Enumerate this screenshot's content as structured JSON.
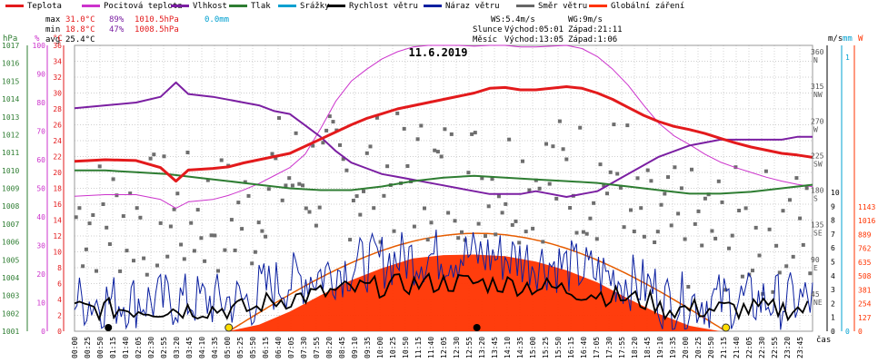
{
  "legend": [
    {
      "label": "Teplota",
      "color": "#e31a1c"
    },
    {
      "label": "Pocitová teplota",
      "color": "#cc33cc"
    },
    {
      "label": "Vlhkost",
      "color": "#7b1fa2"
    },
    {
      "label": "Tlak",
      "color": "#2e7d32"
    },
    {
      "label": "Srážky",
      "color": "#00a0d0"
    },
    {
      "label": "Rychlost větru",
      "color": "#000000"
    },
    {
      "label": "Náraz větru",
      "color": "#0a1fa0"
    },
    {
      "label": "Směr větru",
      "color": "#666666"
    },
    {
      "label": "Globální záření",
      "color": "#ff3300"
    }
  ],
  "stats": {
    "max_label": "max",
    "max_temp": "31.0°C",
    "max_hum": "89%",
    "max_press": "1010.5hPa",
    "max_rain": "0.0mm",
    "min_label": "min",
    "min_temp": "18.8°C",
    "min_hum": "47%",
    "min_press": "1008.5hPa",
    "avg_label": "avg",
    "avg_temp": "25.4°C"
  },
  "sun": {
    "ws": "WS:5.4m/s",
    "wg": "WG:9m/s",
    "sun_label": "Slunce",
    "sun_rise": "Východ:05:01",
    "sun_set": "Západ:21:11",
    "moon_label": "Měsíc",
    "moon_rise": "Východ:13:05",
    "moon_set": "Západ:1:06"
  },
  "chart_data": {
    "type": "line",
    "title": "11.6.2019",
    "x_unit": "čas",
    "x_ticks": [
      "00:00",
      "00:25",
      "00:50",
      "01:15",
      "01:40",
      "02:05",
      "02:30",
      "02:55",
      "03:20",
      "03:45",
      "04:10",
      "04:35",
      "05:00",
      "05:25",
      "05:50",
      "06:15",
      "06:40",
      "07:05",
      "07:30",
      "07:55",
      "08:20",
      "08:45",
      "09:10",
      "09:35",
      "10:00",
      "10:25",
      "10:50",
      "11:15",
      "11:40",
      "12:05",
      "12:30",
      "12:55",
      "13:20",
      "13:45",
      "14:10",
      "14:35",
      "15:00",
      "15:25",
      "15:50",
      "16:15",
      "16:40",
      "17:05",
      "17:30",
      "17:55",
      "18:20",
      "18:45",
      "19:10",
      "19:35",
      "20:00",
      "20:25",
      "20:50",
      "21:15",
      "21:40",
      "22:05",
      "22:30",
      "22:55",
      "23:20",
      "23:45"
    ],
    "axes": {
      "pressure": {
        "unit": "hPa",
        "range": [
          1001,
          1017
        ],
        "ticks": [
          "1001",
          "1002",
          "1003",
          "1004",
          "1005",
          "1006",
          "1007",
          "1008",
          "1009",
          "1010",
          "1011",
          "1012",
          "1013",
          "1014",
          "1015",
          "1016",
          "1017"
        ]
      },
      "humidity": {
        "unit": "%",
        "range": [
          0,
          100
        ],
        "ticks": [
          "0",
          "10",
          "20",
          "30",
          "40",
          "50",
          "60",
          "70",
          "80",
          "90",
          "100"
        ]
      },
      "temperature": {
        "unit": "°C",
        "range": [
          0,
          36
        ],
        "ticks": [
          "0",
          "2",
          "4",
          "6",
          "8",
          "10",
          "12",
          "14",
          "16",
          "18",
          "20",
          "22",
          "24",
          "26",
          "28",
          "30",
          "32",
          "34",
          "36"
        ]
      },
      "wind_dir": {
        "unit": "",
        "ticks": [
          {
            "v": "360",
            "d": "N"
          },
          {
            "v": "315",
            "d": "NW"
          },
          {
            "v": "270",
            "d": "W"
          },
          {
            "v": "225",
            "d": "SW"
          },
          {
            "v": "180",
            "d": "S"
          },
          {
            "v": "135",
            "d": "SE"
          },
          {
            "v": "90",
            "d": "E"
          },
          {
            "v": "45",
            "d": "NE"
          }
        ]
      },
      "wind_speed": {
        "unit": "m/s",
        "range": [
          0,
          10
        ],
        "ticks": [
          "0",
          "1",
          "2",
          "3",
          "4",
          "5",
          "6",
          "7",
          "8",
          "9",
          "10"
        ]
      },
      "rain": {
        "unit": "mm",
        "range": [
          0,
          1
        ],
        "ticks": [
          "0",
          "1"
        ]
      },
      "radiation": {
        "unit": "W",
        "range": [
          0,
          1143
        ],
        "ticks": [
          "0",
          "127",
          "254",
          "381",
          "508",
          "635",
          "762",
          "889",
          "1016",
          "1143"
        ]
      }
    },
    "sunrise_marker": "05:01",
    "sunset_marker": "21:11",
    "moonrise_marker": "13:05",
    "moonset_marker": "01:06",
    "series": [
      {
        "name": "Teplota",
        "unit": "°C",
        "points": [
          [
            0,
            21.4
          ],
          [
            1,
            21.6
          ],
          [
            2,
            21.5
          ],
          [
            2.8,
            20.6
          ],
          [
            3.3,
            18.9
          ],
          [
            3.7,
            20.3
          ],
          [
            4.5,
            20.5
          ],
          [
            5,
            20.7
          ],
          [
            5.5,
            21.2
          ],
          [
            6,
            21.6
          ],
          [
            6.5,
            22.0
          ],
          [
            7,
            22.4
          ],
          [
            7.5,
            23.3
          ],
          [
            8,
            24.2
          ],
          [
            8.5,
            25.1
          ],
          [
            9,
            26.0
          ],
          [
            9.5,
            26.8
          ],
          [
            10,
            27.4
          ],
          [
            10.5,
            28.0
          ],
          [
            11,
            28.4
          ],
          [
            11.5,
            28.8
          ],
          [
            12,
            29.2
          ],
          [
            12.5,
            29.6
          ],
          [
            13,
            30.0
          ],
          [
            13.5,
            30.6
          ],
          [
            14,
            30.7
          ],
          [
            14.5,
            30.4
          ],
          [
            15,
            30.4
          ],
          [
            15.5,
            30.6
          ],
          [
            16,
            30.8
          ],
          [
            16.5,
            30.6
          ],
          [
            17,
            30.0
          ],
          [
            17.5,
            29.2
          ],
          [
            18,
            28.2
          ],
          [
            18.5,
            27.2
          ],
          [
            19,
            26.4
          ],
          [
            19.5,
            25.8
          ],
          [
            20,
            25.4
          ],
          [
            20.5,
            24.9
          ],
          [
            21,
            24.3
          ],
          [
            21.5,
            23.7
          ],
          [
            22,
            23.2
          ],
          [
            22.5,
            22.8
          ],
          [
            23,
            22.4
          ],
          [
            23.5,
            22.2
          ],
          [
            24,
            21.9
          ]
        ]
      },
      {
        "name": "Pocitová teplota",
        "unit": "°C",
        "points": [
          [
            0,
            17.0
          ],
          [
            1,
            17.2
          ],
          [
            2,
            17.2
          ],
          [
            2.8,
            16.6
          ],
          [
            3.3,
            15.5
          ],
          [
            3.7,
            16.3
          ],
          [
            4.5,
            16.6
          ],
          [
            5,
            17.1
          ],
          [
            5.5,
            17.8
          ],
          [
            6,
            18.6
          ],
          [
            6.5,
            19.6
          ],
          [
            7,
            20.6
          ],
          [
            7.5,
            22.3
          ],
          [
            8,
            25.5
          ],
          [
            8.5,
            29.0
          ],
          [
            9,
            31.5
          ],
          [
            9.5,
            33.0
          ],
          [
            10,
            34.3
          ],
          [
            10.5,
            35.2
          ],
          [
            11,
            35.8
          ],
          [
            11.5,
            36.0
          ],
          [
            12,
            36.0
          ],
          [
            12.5,
            36.0
          ],
          [
            13,
            35.9
          ],
          [
            13.5,
            36.0
          ],
          [
            14,
            36.0
          ],
          [
            14.5,
            35.8
          ],
          [
            15,
            35.8
          ],
          [
            15.5,
            35.9
          ],
          [
            16,
            36.0
          ],
          [
            16.5,
            35.6
          ],
          [
            17,
            34.6
          ],
          [
            17.5,
            33.0
          ],
          [
            18,
            31.0
          ],
          [
            18.5,
            28.5
          ],
          [
            19,
            26.2
          ],
          [
            19.5,
            24.6
          ],
          [
            20,
            23.5
          ],
          [
            20.5,
            22.3
          ],
          [
            21,
            21.3
          ],
          [
            21.5,
            20.6
          ],
          [
            22,
            20.0
          ],
          [
            22.5,
            19.4
          ],
          [
            23,
            18.9
          ],
          [
            23.5,
            18.5
          ],
          [
            24,
            18.2
          ]
        ]
      },
      {
        "name": "Vlhkost",
        "unit": "%",
        "points": [
          [
            0,
            78
          ],
          [
            1,
            79
          ],
          [
            2,
            80
          ],
          [
            2.8,
            82
          ],
          [
            3.3,
            87
          ],
          [
            3.7,
            83
          ],
          [
            4.5,
            82
          ],
          [
            5,
            81
          ],
          [
            5.5,
            80
          ],
          [
            6,
            79
          ],
          [
            6.5,
            77
          ],
          [
            7,
            76
          ],
          [
            7.5,
            72
          ],
          [
            8,
            68
          ],
          [
            8.5,
            63
          ],
          [
            9,
            59
          ],
          [
            9.5,
            57
          ],
          [
            10,
            55
          ],
          [
            10.5,
            54
          ],
          [
            11,
            53
          ],
          [
            11.5,
            52
          ],
          [
            12,
            51
          ],
          [
            12.5,
            50
          ],
          [
            13,
            49
          ],
          [
            13.5,
            48
          ],
          [
            14,
            48
          ],
          [
            14.5,
            48
          ],
          [
            15,
            49
          ],
          [
            15.5,
            48
          ],
          [
            16,
            47
          ],
          [
            16.5,
            48
          ],
          [
            17,
            49
          ],
          [
            17.5,
            52
          ],
          [
            18,
            55
          ],
          [
            18.5,
            58
          ],
          [
            19,
            61
          ],
          [
            19.5,
            63
          ],
          [
            20,
            65
          ],
          [
            20.5,
            66
          ],
          [
            21,
            67
          ],
          [
            21.5,
            67
          ],
          [
            22,
            67
          ],
          [
            22.5,
            67
          ],
          [
            23,
            67
          ],
          [
            23.5,
            68
          ],
          [
            24,
            68
          ]
        ]
      },
      {
        "name": "Tlak",
        "unit": "hPa",
        "points": [
          [
            0,
            1010.0
          ],
          [
            1,
            1010.0
          ],
          [
            2,
            1009.9
          ],
          [
            3,
            1009.8
          ],
          [
            4,
            1009.6
          ],
          [
            5,
            1009.4
          ],
          [
            6,
            1009.2
          ],
          [
            7,
            1009.0
          ],
          [
            8,
            1008.9
          ],
          [
            9,
            1008.9
          ],
          [
            10,
            1009.1
          ],
          [
            11,
            1009.4
          ],
          [
            12,
            1009.6
          ],
          [
            13,
            1009.7
          ],
          [
            14,
            1009.6
          ],
          [
            15,
            1009.5
          ],
          [
            16,
            1009.4
          ],
          [
            17,
            1009.3
          ],
          [
            18,
            1009.1
          ],
          [
            19,
            1008.9
          ],
          [
            20,
            1008.7
          ],
          [
            21,
            1008.7
          ],
          [
            22,
            1008.8
          ],
          [
            23,
            1009.0
          ],
          [
            24,
            1009.2
          ]
        ]
      },
      {
        "name": "Globální záření",
        "unit": "W",
        "points": [
          [
            0,
            0
          ],
          [
            5,
            0
          ],
          [
            6,
            60
          ],
          [
            7,
            180
          ],
          [
            8,
            330
          ],
          [
            9,
            470
          ],
          [
            10,
            580
          ],
          [
            11,
            670
          ],
          [
            12,
            700
          ],
          [
            13,
            705
          ],
          [
            14,
            690
          ],
          [
            15,
            640
          ],
          [
            16,
            560
          ],
          [
            17,
            450
          ],
          [
            18,
            300
          ],
          [
            19,
            160
          ],
          [
            20,
            50
          ],
          [
            21,
            0
          ],
          [
            24,
            0
          ]
        ]
      }
    ]
  }
}
